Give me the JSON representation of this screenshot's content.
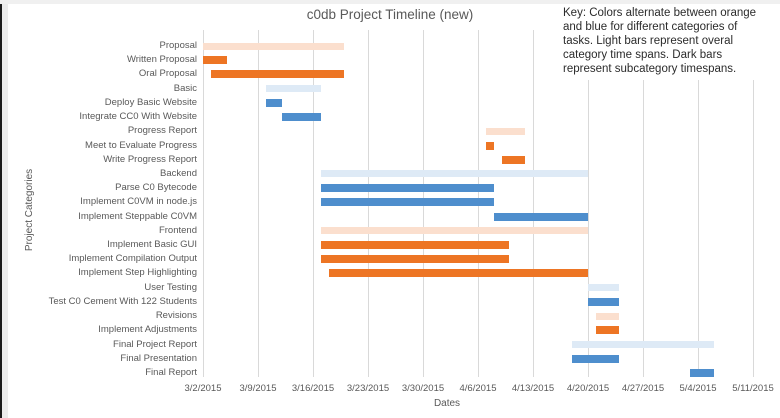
{
  "title": "c0db Project Timeline (new)",
  "key_note": {
    "lines": [
      "Key: Colors alternate between orange",
      "and blue for different categories of",
      "tasks. Light bars represent overal",
      "category time spans. Dark bars",
      "represent subcategory timespans."
    ]
  },
  "axes": {
    "x_title": "Dates",
    "y_title": "Project Categories"
  },
  "colors": {
    "orange_dark": "#ED7524",
    "orange_light": "#FBDFCE",
    "blue_dark": "#4E8ECD",
    "blue_light": "#DEEAF6",
    "gridline": "#D9D9D9",
    "axis_text": "#595959"
  },
  "chart_data": {
    "type": "bar",
    "subtype": "gantt-horizontal",
    "title": "c0db Project Timeline (new)",
    "xlabel": "Dates",
    "ylabel": "Project Categories",
    "grid": "vertical-weekly",
    "legend_position": "none",
    "x_ticks": [
      "3/2/2015",
      "3/9/2015",
      "3/16/2015",
      "3/23/2015",
      "3/30/2015",
      "4/6/2015",
      "4/13/2015",
      "4/20/2015",
      "4/27/2015",
      "5/4/2015",
      "5/11/2015"
    ],
    "x_range": [
      "3/2/2015",
      "5/11/2015"
    ],
    "categories": [
      "Proposal",
      "Written Proposal",
      "Oral Proposal",
      "Basic",
      "Deploy Basic Website",
      "Integrate CC0 With Website",
      "Progress Report",
      "Meet to Evaluate Progress",
      "Write Progress Report",
      "Backend",
      "Parse C0 Bytecode",
      "Implement C0VM in node.js",
      "Implement Steppable C0VM",
      "Frontend",
      "Implement Basic GUI",
      "Implement Compilation Output",
      "Implement Step Highlighting",
      "User Testing",
      "Test C0 Cement With 122 Students",
      "Revisions",
      "Implement Adjustments",
      "Final Project Report",
      "Final Presentation",
      "Final Report"
    ],
    "bars": [
      {
        "label": "Proposal",
        "start": "3/2/2015",
        "end": "3/20/2015",
        "color": "orange_light",
        "shade": "light"
      },
      {
        "label": "Written Proposal",
        "start": "3/2/2015",
        "end": "3/5/2015",
        "color": "orange_dark",
        "shade": "dark"
      },
      {
        "label": "Oral Proposal",
        "start": "3/3/2015",
        "end": "3/20/2015",
        "color": "orange_dark",
        "shade": "dark"
      },
      {
        "label": "Basic",
        "start": "3/10/2015",
        "end": "3/17/2015",
        "color": "blue_light",
        "shade": "light"
      },
      {
        "label": "Deploy Basic Website",
        "start": "3/10/2015",
        "end": "3/12/2015",
        "color": "blue_dark",
        "shade": "dark"
      },
      {
        "label": "Integrate CC0 With Website",
        "start": "3/12/2015",
        "end": "3/17/2015",
        "color": "blue_dark",
        "shade": "dark"
      },
      {
        "label": "Progress Report",
        "start": "4/7/2015",
        "end": "4/12/2015",
        "color": "orange_light",
        "shade": "light"
      },
      {
        "label": "Meet to Evaluate Progress",
        "start": "4/7/2015",
        "end": "4/8/2015",
        "color": "orange_dark",
        "shade": "dark"
      },
      {
        "label": "Write Progress Report",
        "start": "4/9/2015",
        "end": "4/12/2015",
        "color": "orange_dark",
        "shade": "dark"
      },
      {
        "label": "Backend",
        "start": "3/17/2015",
        "end": "4/20/2015",
        "color": "blue_light",
        "shade": "light"
      },
      {
        "label": "Parse C0 Bytecode",
        "start": "3/17/2015",
        "end": "4/8/2015",
        "color": "blue_dark",
        "shade": "dark"
      },
      {
        "label": "Implement C0VM in node.js",
        "start": "3/17/2015",
        "end": "4/8/2015",
        "color": "blue_dark",
        "shade": "dark"
      },
      {
        "label": "Implement Steppable C0VM",
        "start": "4/8/2015",
        "end": "4/20/2015",
        "color": "blue_dark",
        "shade": "dark"
      },
      {
        "label": "Frontend",
        "start": "3/17/2015",
        "end": "4/20/2015",
        "color": "orange_light",
        "shade": "light"
      },
      {
        "label": "Implement Basic GUI",
        "start": "3/17/2015",
        "end": "4/10/2015",
        "color": "orange_dark",
        "shade": "dark"
      },
      {
        "label": "Implement Compilation Output",
        "start": "3/17/2015",
        "end": "4/10/2015",
        "color": "orange_dark",
        "shade": "dark"
      },
      {
        "label": "Implement Step Highlighting",
        "start": "3/18/2015",
        "end": "4/20/2015",
        "color": "orange_dark",
        "shade": "dark"
      },
      {
        "label": "User Testing",
        "start": "4/20/2015",
        "end": "4/24/2015",
        "color": "blue_light",
        "shade": "light"
      },
      {
        "label": "Test C0 Cement With 122 Students",
        "start": "4/20/2015",
        "end": "4/24/2015",
        "color": "blue_dark",
        "shade": "dark"
      },
      {
        "label": "Revisions",
        "start": "4/21/2015",
        "end": "4/24/2015",
        "color": "orange_light",
        "shade": "light"
      },
      {
        "label": "Implement Adjustments",
        "start": "4/21/2015",
        "end": "4/24/2015",
        "color": "orange_dark",
        "shade": "dark"
      },
      {
        "label": "Final Project Report",
        "start": "4/18/2015",
        "end": "5/6/2015",
        "color": "blue_light",
        "shade": "light"
      },
      {
        "label": "Final Presentation",
        "start": "4/18/2015",
        "end": "4/24/2015",
        "color": "blue_dark",
        "shade": "dark"
      },
      {
        "label": "Final Report",
        "start": "5/3/2015",
        "end": "5/6/2015",
        "color": "blue_dark",
        "shade": "dark"
      }
    ]
  }
}
